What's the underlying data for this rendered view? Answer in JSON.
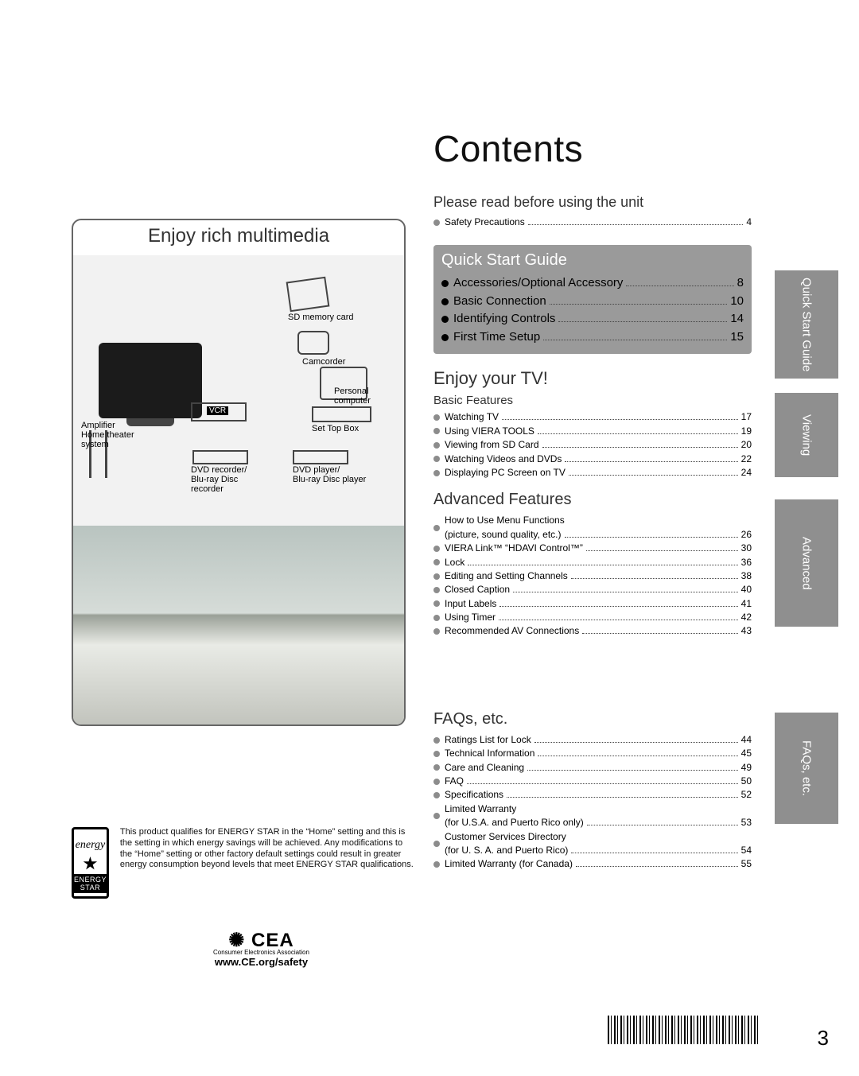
{
  "page": {
    "number": "3",
    "contents_title": "Contents"
  },
  "left": {
    "rich_title": "Enjoy rich multimedia",
    "labels": {
      "sd": "SD memory card",
      "cam": "Camcorder",
      "pc": "Personal\ncomputer",
      "vcr": "VCR",
      "stb": "Set Top Box",
      "amp": "Amplifier\nHome theater\nsystem",
      "dvdrec": "DVD recorder/\nBlu-ray Disc\nrecorder",
      "dvdplayer": "DVD player/\nBlu-ray Disc player"
    },
    "energy_text": "This product qualifies for ENERGY STAR in the “Home” setting and this is the setting in which energy savings will be achieved. Any modifications to the “Home” setting or other factory default settings could result in greater energy consumption beyond levels that meet ENERGY STAR qualifications.",
    "energy_label": "ENERGY STAR",
    "energy_script": "energy",
    "cea_logo": "CEA",
    "cea_tag": "Consumer Electronics Association",
    "cea_site": "www.CE.org/safety"
  },
  "sections": {
    "preread": {
      "heading": "Please read before using the unit",
      "items": [
        {
          "label": "Safety Precautions",
          "page": "4",
          "grey": true
        }
      ]
    },
    "quickstart": {
      "heading": "Quick Start Guide",
      "items": [
        {
          "label": "Accessories/Optional Accessory",
          "page": "8"
        },
        {
          "label": "Basic Connection",
          "page": "10"
        },
        {
          "label": "Identifying Controls",
          "page": "14"
        },
        {
          "label": "First Time Setup",
          "page": "15"
        }
      ]
    },
    "enjoy": {
      "heading": "Enjoy your TV!",
      "sub": "Basic Features",
      "items": [
        {
          "label": "Watching TV",
          "page": "17",
          "grey": true
        },
        {
          "label": "Using VIERA TOOLS",
          "page": "19",
          "grey": true
        },
        {
          "label": "Viewing from SD Card",
          "page": "20",
          "grey": true
        },
        {
          "label": "Watching Videos and DVDs",
          "page": "22",
          "grey": true
        },
        {
          "label": "Displaying PC Screen on TV",
          "page": "24",
          "grey": true
        }
      ]
    },
    "advanced": {
      "heading": "Advanced Features",
      "items": [
        {
          "label": "How to Use Menu Functions",
          "line2": "(picture, sound quality, etc.)",
          "page": "26",
          "grey": true
        },
        {
          "label": "VIERA Link™ “HDAVI Control™”",
          "page": "30",
          "grey": true
        },
        {
          "label": "Lock",
          "page": "36",
          "grey": true
        },
        {
          "label": "Editing and Setting Channels",
          "page": "38",
          "grey": true
        },
        {
          "label": "Closed Caption",
          "page": "40",
          "grey": true
        },
        {
          "label": "Input Labels",
          "page": "41",
          "grey": true
        },
        {
          "label": "Using Timer",
          "page": "42",
          "grey": true
        },
        {
          "label": "Recommended AV Connections",
          "page": "43",
          "grey": true
        }
      ]
    },
    "faq": {
      "heading": "FAQs, etc.",
      "items": [
        {
          "label": "Ratings List for Lock",
          "page": "44",
          "grey": true
        },
        {
          "label": "Technical Information",
          "page": "45",
          "grey": true
        },
        {
          "label": "Care and Cleaning",
          "page": "49",
          "grey": true
        },
        {
          "label": "FAQ",
          "page": "50",
          "grey": true
        },
        {
          "label": "Specifications",
          "page": "52",
          "grey": true
        },
        {
          "label": "Limited Warranty",
          "line2": "(for U.S.A. and Puerto Rico only)",
          "page": "53",
          "grey": true
        },
        {
          "label": "Customer Services Directory",
          "line2": "(for U. S. A. and Puerto Rico)",
          "page": "54",
          "grey": true
        },
        {
          "label": "Limited Warranty (for Canada)",
          "page": "55",
          "grey": true
        }
      ]
    }
  },
  "tabs": {
    "qs": "Quick Start\nGuide",
    "vw": "Viewing",
    "adv": "Advanced",
    "faq": "FAQs, etc."
  },
  "colors": {
    "tab_bg": "#8f8f8f",
    "qs_box_bg": "#9a9a9a",
    "grey_bullet": "#8c8c8c"
  }
}
